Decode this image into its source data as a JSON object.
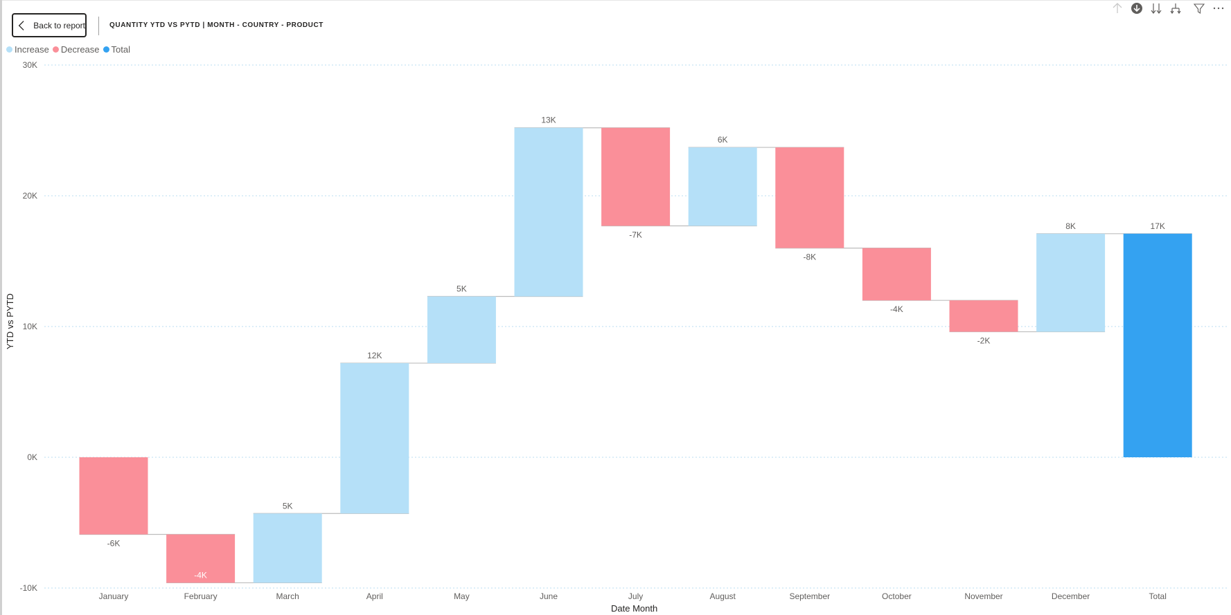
{
  "header": {
    "back_button_label": "Back to report",
    "title": "QUANTITY YTD VS PYTD | MONTH - COUNTRY - PRODUCT"
  },
  "legend": {
    "items": [
      {
        "label": "Increase",
        "color": "#b5e0f8"
      },
      {
        "label": "Decrease",
        "color": "#fa8f99"
      },
      {
        "label": "Total",
        "color": "#34a2f1"
      }
    ]
  },
  "toolbar": {
    "icons": [
      "drill-up-icon",
      "drill-down-mode-icon",
      "expand-next-level-icon",
      "expand-hierarchy-icon",
      "filter-icon",
      "more-options-icon"
    ]
  },
  "colors": {
    "increase": "#b5e0f8",
    "decrease": "#fa8f99",
    "total": "#34a2f1",
    "gridline": "#b8dcf2",
    "connector": "#bdbdbd"
  },
  "chart_data": {
    "type": "waterfall",
    "title": "QUANTITY YTD VS PYTD | MONTH - COUNTRY - PRODUCT",
    "xlabel": "Date Month",
    "ylabel": "YTD vs PYTD",
    "ylim": [
      -10000,
      30000
    ],
    "yticks": [
      "30K",
      "20K",
      "10K",
      "0K",
      "-10K"
    ],
    "ytick_values": [
      30000,
      20000,
      10000,
      0,
      -10000
    ],
    "grid": true,
    "legend_position": "top-left",
    "categories": [
      "January",
      "February",
      "March",
      "April",
      "May",
      "June",
      "July",
      "August",
      "September",
      "October",
      "November",
      "December",
      "Total"
    ],
    "values": [
      -5900,
      -3700,
      5300,
      11500,
      5100,
      12900,
      -7500,
      6000,
      -7700,
      -4000,
      -2400,
      7500,
      17100
    ],
    "data_labels": [
      "-6K",
      "-4K",
      "5K",
      "12K",
      "5K",
      "13K",
      "-7K",
      "6K",
      "-8K",
      "-4K",
      "-2K",
      "8K",
      "17K"
    ],
    "kinds": [
      "decrease",
      "decrease",
      "increase",
      "increase",
      "increase",
      "increase",
      "decrease",
      "increase",
      "decrease",
      "decrease",
      "decrease",
      "increase",
      "total"
    ],
    "cumulative_end": [
      -5900,
      -9600,
      -4300,
      7200,
      12300,
      25200,
      17700,
      23700,
      16000,
      12000,
      9600,
      17100,
      17100
    ]
  }
}
